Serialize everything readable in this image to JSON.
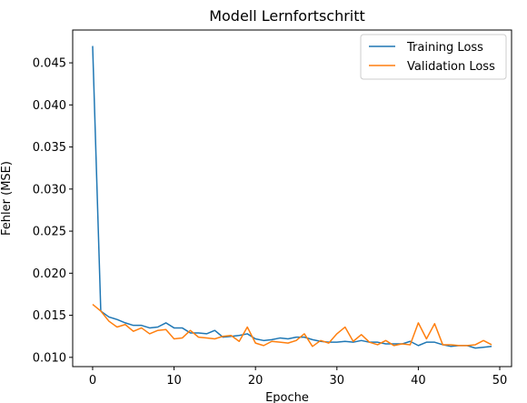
{
  "chart_data": {
    "type": "line",
    "title": "Modell Lernfortschritt",
    "xlabel": "Epoche",
    "ylabel": "Fehler (MSE)",
    "xlim": [
      -2.45,
      51.45
    ],
    "ylim": [
      0.0089,
      0.0489
    ],
    "xticks": [
      0,
      10,
      20,
      30,
      40,
      50
    ],
    "yticks": [
      0.01,
      0.015,
      0.02,
      0.025,
      0.03,
      0.035,
      0.04,
      0.045
    ],
    "ytick_labels": [
      "0.010",
      "0.015",
      "0.020",
      "0.025",
      "0.030",
      "0.035",
      "0.040",
      "0.045"
    ],
    "grid": false,
    "legend_position": "top-right",
    "x": [
      0,
      1,
      2,
      3,
      4,
      5,
      6,
      7,
      8,
      9,
      10,
      11,
      12,
      13,
      14,
      15,
      16,
      17,
      18,
      19,
      20,
      21,
      22,
      23,
      24,
      25,
      26,
      27,
      28,
      29,
      30,
      31,
      32,
      33,
      34,
      35,
      36,
      37,
      38,
      39,
      40,
      41,
      42,
      43,
      44,
      45,
      46,
      47,
      48,
      49
    ],
    "series": [
      {
        "name": "Training Loss",
        "color": "#1f77b4",
        "values": [
          0.047,
          0.0155,
          0.0148,
          0.0145,
          0.0141,
          0.0138,
          0.0138,
          0.0135,
          0.0136,
          0.0141,
          0.0135,
          0.0135,
          0.0129,
          0.0129,
          0.0128,
          0.0132,
          0.0124,
          0.0125,
          0.0126,
          0.0128,
          0.0122,
          0.012,
          0.0121,
          0.0123,
          0.0122,
          0.0124,
          0.0124,
          0.0121,
          0.0119,
          0.0118,
          0.0118,
          0.0119,
          0.0118,
          0.012,
          0.0118,
          0.0118,
          0.0116,
          0.0116,
          0.0116,
          0.0119,
          0.0114,
          0.0118,
          0.0118,
          0.0115,
          0.0113,
          0.0114,
          0.0114,
          0.0111,
          0.0112,
          0.0113
        ]
      },
      {
        "name": "Validation Loss",
        "color": "#ff7f0e",
        "values": [
          0.0163,
          0.0155,
          0.0143,
          0.0136,
          0.0139,
          0.0131,
          0.0135,
          0.0128,
          0.0132,
          0.0133,
          0.0122,
          0.0123,
          0.0132,
          0.0124,
          0.0123,
          0.0122,
          0.0125,
          0.0126,
          0.0119,
          0.0136,
          0.0117,
          0.0114,
          0.0119,
          0.0118,
          0.0117,
          0.012,
          0.0128,
          0.0113,
          0.012,
          0.0117,
          0.0128,
          0.0136,
          0.0119,
          0.0127,
          0.0118,
          0.0115,
          0.012,
          0.0114,
          0.0116,
          0.0115,
          0.0141,
          0.0122,
          0.014,
          0.0115,
          0.0115,
          0.0114,
          0.0114,
          0.0115,
          0.012,
          0.0115
        ]
      }
    ]
  }
}
